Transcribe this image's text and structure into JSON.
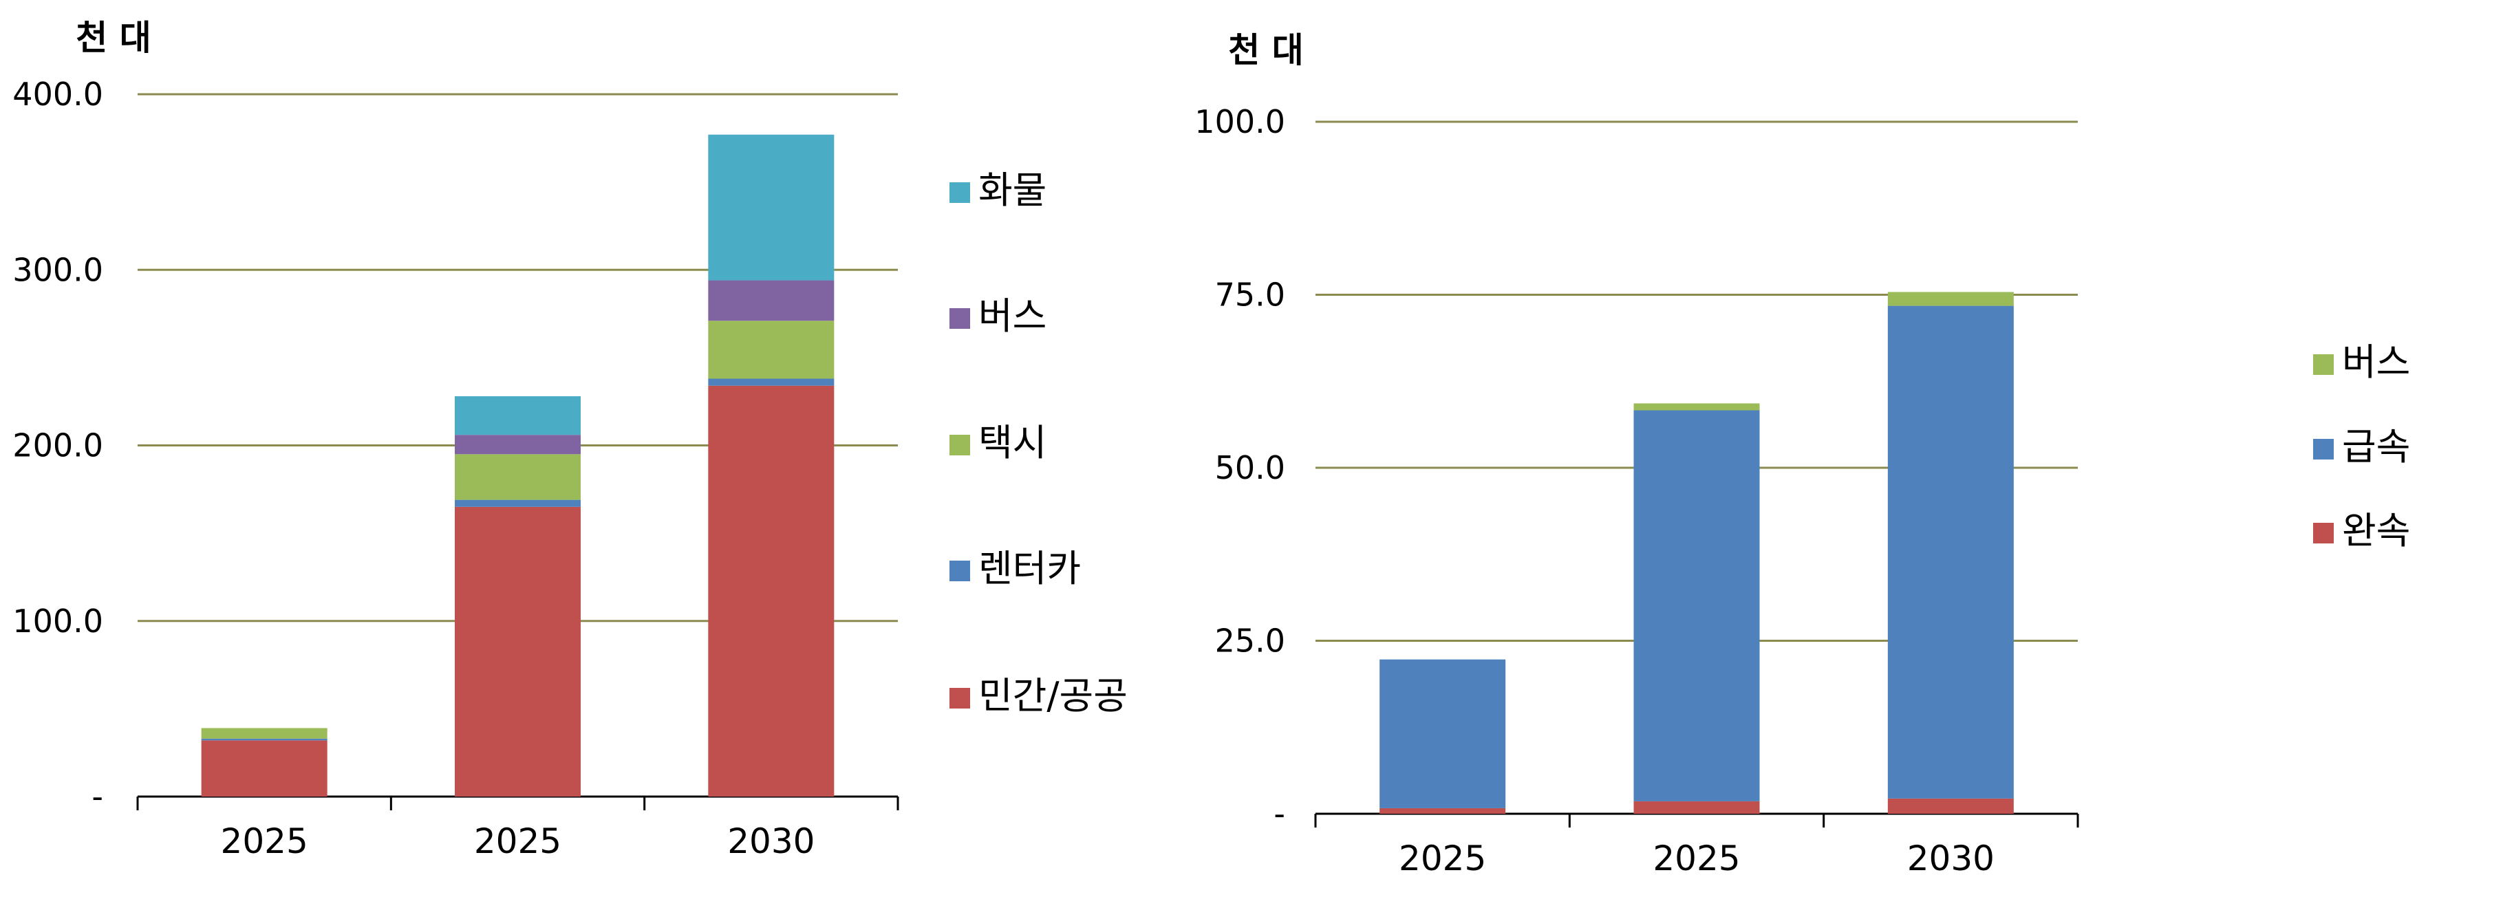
{
  "chart_data": [
    {
      "type": "bar",
      "stacked": true,
      "unit_label": "천 대",
      "categories": [
        "2025",
        "2025",
        "2030"
      ],
      "y_ticks": [
        "-",
        "100.0",
        "200.0",
        "300.0",
        "400.0"
      ],
      "ylim": [
        0,
        400
      ],
      "grid": true,
      "legend_position": "right",
      "series": [
        {
          "name": "민간/공공",
          "color": "#c0504d",
          "values": [
            32,
            165,
            234
          ]
        },
        {
          "name": "렌터카",
          "color": "#4f81bd",
          "values": [
            1,
            4,
            4
          ]
        },
        {
          "name": "택시",
          "color": "#9bbb59",
          "values": [
            6,
            26,
            33
          ]
        },
        {
          "name": "버스",
          "color": "#8064a2",
          "values": [
            0,
            11,
            23
          ]
        },
        {
          "name": "화물",
          "color": "#4bacc6",
          "values": [
            0,
            22,
            83
          ]
        }
      ]
    },
    {
      "type": "bar",
      "stacked": true,
      "unit_label": "천 대",
      "categories": [
        "2025",
        "2025",
        "2030"
      ],
      "y_ticks": [
        "-",
        "25.0",
        "50.0",
        "75.0",
        "100.0"
      ],
      "ylim": [
        0,
        100
      ],
      "grid": true,
      "legend_position": "right",
      "series": [
        {
          "name": "완속",
          "color": "#c0504d",
          "values": [
            0.8,
            1.8,
            2.2
          ]
        },
        {
          "name": "급속",
          "color": "#4f81bd",
          "values": [
            21.5,
            56.5,
            71.2
          ]
        },
        {
          "name": "버스",
          "color": "#9bbb59",
          "values": [
            0,
            1.0,
            2.0
          ]
        }
      ]
    }
  ],
  "style": {
    "grid_color": "#8b8b4f",
    "axis_color": "#000000"
  }
}
